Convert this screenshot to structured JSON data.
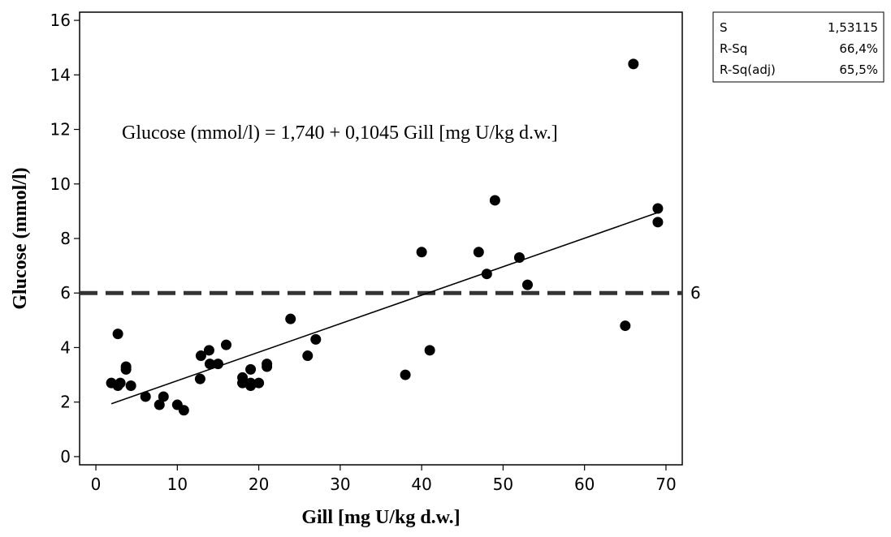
{
  "chart_data": {
    "type": "scatter",
    "title": "",
    "xlabel": "Gill [mg U/kg d.w.]",
    "ylabel": "Glucose (mmol/l)",
    "xlim": [
      -2,
      72
    ],
    "ylim": [
      -0.3,
      16.3
    ],
    "xticks": [
      0,
      10,
      20,
      30,
      40,
      50,
      60,
      70
    ],
    "yticks": [
      0,
      2,
      4,
      6,
      8,
      10,
      12,
      14,
      16
    ],
    "grid": false,
    "series": [
      {
        "points": [
          [
            1.9,
            2.7
          ],
          [
            2.7,
            2.6
          ],
          [
            3.0,
            2.7
          ],
          [
            2.7,
            4.5
          ],
          [
            3.7,
            3.3
          ],
          [
            3.7,
            3.2
          ],
          [
            4.3,
            2.6
          ],
          [
            6.1,
            2.2
          ],
          [
            7.8,
            1.9
          ],
          [
            8.3,
            2.2
          ],
          [
            10.0,
            1.9
          ],
          [
            10.8,
            1.7
          ],
          [
            12.8,
            2.85
          ],
          [
            12.9,
            3.7
          ],
          [
            13.9,
            3.9
          ],
          [
            14.0,
            3.4
          ],
          [
            15.0,
            3.4
          ],
          [
            16.0,
            4.1
          ],
          [
            18.0,
            2.9
          ],
          [
            18.0,
            2.7
          ],
          [
            19.0,
            3.2
          ],
          [
            19.0,
            2.7
          ],
          [
            19.0,
            2.6
          ],
          [
            20.0,
            2.7
          ],
          [
            21.0,
            3.4
          ],
          [
            21.0,
            3.3
          ],
          [
            23.9,
            5.05
          ],
          [
            26.0,
            3.7
          ],
          [
            27.0,
            4.3
          ],
          [
            38.0,
            3.0
          ],
          [
            40.0,
            7.5
          ],
          [
            41.0,
            3.9
          ],
          [
            47.0,
            7.5
          ],
          [
            48.0,
            6.7
          ],
          [
            49.0,
            9.4
          ],
          [
            52.0,
            7.3
          ],
          [
            53.0,
            6.3
          ],
          [
            65.0,
            4.8
          ],
          [
            66.0,
            14.4
          ],
          [
            69.0,
            9.1
          ],
          [
            69.0,
            8.6
          ]
        ]
      }
    ],
    "fit": {
      "type": "linear",
      "intercept": 1.74,
      "slope": 0.1045,
      "x_range": [
        1.9,
        69.0
      ]
    },
    "reference_line": {
      "y": 6,
      "label": "6",
      "style": "dashed",
      "color": "#333333"
    },
    "equation": "Glucose (mmol/l) =  1,740 + 0,1045 Gill [mg U/kg d.w.]",
    "stats": [
      {
        "label": "S",
        "value": "1,53115"
      },
      {
        "label": "R-Sq",
        "value": "66,4%"
      },
      {
        "label": "R-Sq(adj)",
        "value": "65,5%"
      }
    ],
    "colors": {
      "points": "#000000",
      "fit_line": "#000000",
      "reference_line": "#333333"
    }
  }
}
